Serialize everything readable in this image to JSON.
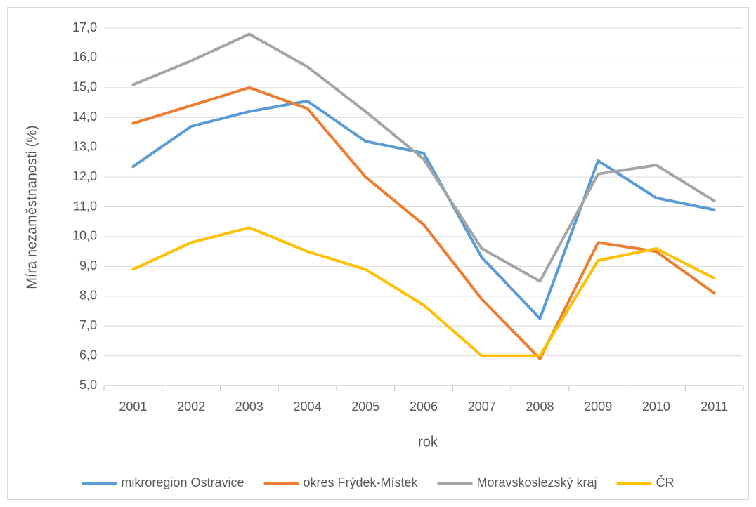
{
  "chart_data": {
    "type": "line",
    "x_label": "rok",
    "y_label": "Míra nezaměstnanosti (%)",
    "categories": [
      "2001",
      "2002",
      "2003",
      "2004",
      "2005",
      "2006",
      "2007",
      "2008",
      "2009",
      "2010",
      "2011"
    ],
    "series": [
      {
        "name": "mikroregion Ostravice",
        "color": "#5b9bd5",
        "values": [
          12.35,
          13.7,
          14.2,
          14.55,
          13.2,
          12.8,
          9.3,
          7.25,
          12.55,
          11.3,
          10.9
        ]
      },
      {
        "name": "okres Frýdek-Místek",
        "color": "#ed7d31",
        "values": [
          13.8,
          14.4,
          15.0,
          14.3,
          12.0,
          10.4,
          7.9,
          5.9,
          9.8,
          9.5,
          8.1
        ]
      },
      {
        "name": "Moravskoslezský kraj",
        "color": "#a5a5a5",
        "values": [
          15.1,
          15.9,
          16.8,
          15.7,
          14.2,
          12.6,
          9.6,
          8.5,
          12.1,
          12.4,
          11.2
        ]
      },
      {
        "name": "ČR",
        "color": "#ffc000",
        "values": [
          8.9,
          9.8,
          10.3,
          9.5,
          8.9,
          7.7,
          6.0,
          6.0,
          9.2,
          9.6,
          8.6
        ]
      }
    ],
    "ylim": [
      5,
      17
    ],
    "yticks": [
      {
        "value": 5,
        "label": "5,0"
      },
      {
        "value": 6,
        "label": "6,0"
      },
      {
        "value": 7,
        "label": "7,0"
      },
      {
        "value": 8,
        "label": "8,0"
      },
      {
        "value": 9,
        "label": "9,0"
      },
      {
        "value": 10,
        "label": "10,0"
      },
      {
        "value": 11,
        "label": "11,0"
      },
      {
        "value": 12,
        "label": "12,0"
      },
      {
        "value": 13,
        "label": "13,0"
      },
      {
        "value": 14,
        "label": "14,0"
      },
      {
        "value": 15,
        "label": "15,0"
      },
      {
        "value": 16,
        "label": "16,0"
      },
      {
        "value": 17,
        "label": "17,0"
      }
    ],
    "grid": true,
    "legend": "bottom"
  }
}
